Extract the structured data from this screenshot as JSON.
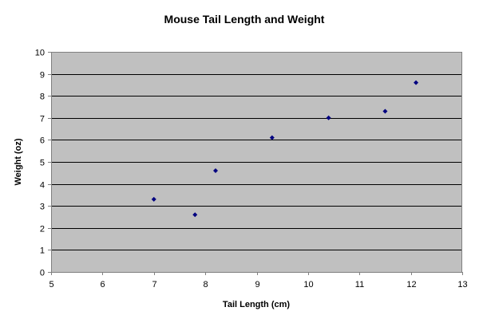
{
  "chart_data": {
    "type": "scatter",
    "title": "Mouse Tail Length and Weight",
    "xlabel": "Tail Length (cm)",
    "ylabel": "Weight (oz)",
    "xlim": [
      5,
      13
    ],
    "ylim": [
      0,
      10
    ],
    "x_ticks": [
      "5",
      "6",
      "7",
      "8",
      "9",
      "10",
      "11",
      "12",
      "13"
    ],
    "y_ticks": [
      "0",
      "1",
      "2",
      "3",
      "4",
      "5",
      "6",
      "7",
      "8",
      "9",
      "10"
    ],
    "grid": "horizontal",
    "series": [
      {
        "x": [
          7.0,
          7.8,
          8.2,
          9.3,
          10.4,
          11.5,
          12.1
        ],
        "y": [
          3.3,
          2.6,
          4.6,
          6.1,
          7.0,
          7.3,
          8.6
        ]
      }
    ],
    "colors": {
      "plot_background": "#c0c0c0",
      "marker": "#000080",
      "gridline": "#000000",
      "axis": "#808080"
    }
  }
}
